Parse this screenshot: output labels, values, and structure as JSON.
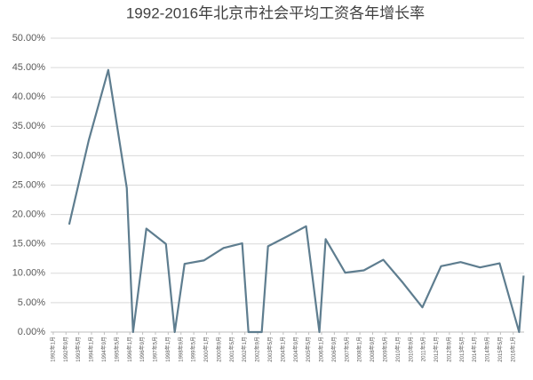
{
  "chart_data": {
    "type": "line",
    "title": "1992-2016年北京市社会平均工资各年增长率",
    "x": [
      1.25,
      2.78,
      4.31,
      5.76,
      6.25,
      7.29,
      8.82,
      9.51,
      10.28,
      11.81,
      13.33,
      14.79,
      15.28,
      16.32,
      16.81,
      18.33,
      19.79,
      20.83,
      21.32,
      22.85,
      24.31,
      25.83,
      27.36,
      28.89,
      30.35,
      31.88,
      33.4,
      34.93,
      36.46,
      36.81
    ],
    "series": [
      {
        "name": "增长率",
        "color": "#5e7d8f",
        "values": [
          18.3,
          32.6,
          44.6,
          24.5,
          0,
          17.6,
          15.0,
          0,
          11.6,
          12.2,
          14.3,
          15.1,
          0,
          0,
          14.6,
          16.3,
          18.0,
          0,
          15.8,
          10.1,
          10.5,
          12.3,
          8.4,
          4.2,
          11.2,
          11.9,
          11.0,
          11.7,
          0,
          9.6
        ]
      }
    ],
    "xlim": [
      -0.2,
      36.85
    ],
    "xticks": [
      {
        "value": 0,
        "label": "1992年1月"
      },
      {
        "value": 1,
        "label": "1992年9月"
      },
      {
        "value": 2,
        "label": "1993年5月"
      },
      {
        "value": 3,
        "label": "1994年1月"
      },
      {
        "value": 4,
        "label": "1994年9月"
      },
      {
        "value": 5,
        "label": "1995年5月"
      },
      {
        "value": 6,
        "label": "1996年1月"
      },
      {
        "value": 7,
        "label": "1996年9月"
      },
      {
        "value": 8,
        "label": "1997年5月"
      },
      {
        "value": 9,
        "label": "1998年1月"
      },
      {
        "value": 10,
        "label": "1998年9月"
      },
      {
        "value": 11,
        "label": "1999年5月"
      },
      {
        "value": 12,
        "label": "2000年1月"
      },
      {
        "value": 13,
        "label": "2000年9月"
      },
      {
        "value": 14,
        "label": "2001年5月"
      },
      {
        "value": 15,
        "label": "2002年1月"
      },
      {
        "value": 16,
        "label": "2002年9月"
      },
      {
        "value": 17,
        "label": "2003年5月"
      },
      {
        "value": 18,
        "label": "2004年1月"
      },
      {
        "value": 19,
        "label": "2004年9月"
      },
      {
        "value": 20,
        "label": "2005年5月"
      },
      {
        "value": 21,
        "label": "2006年1月"
      },
      {
        "value": 22,
        "label": "2006年9月"
      },
      {
        "value": 23,
        "label": "2007年5月"
      },
      {
        "value": 24,
        "label": "2008年1月"
      },
      {
        "value": 25,
        "label": "2008年9月"
      },
      {
        "value": 26,
        "label": "2009年5月"
      },
      {
        "value": 27,
        "label": "2010年1月"
      },
      {
        "value": 28,
        "label": "2010年9月"
      },
      {
        "value": 29,
        "label": "2011年5月"
      },
      {
        "value": 30,
        "label": "2012年1月"
      },
      {
        "value": 31,
        "label": "2012年9月"
      },
      {
        "value": 32,
        "label": "2013年5月"
      },
      {
        "value": 33,
        "label": "2014年1月"
      },
      {
        "value": 34,
        "label": "2014年9月"
      },
      {
        "value": 35,
        "label": "2015年5月"
      },
      {
        "value": 36,
        "label": "2016年1月"
      }
    ],
    "ylim": [
      0,
      50
    ],
    "yticks": [
      {
        "value": 0,
        "label": "0.00%"
      },
      {
        "value": 5,
        "label": "5.00%"
      },
      {
        "value": 10,
        "label": "10.00%"
      },
      {
        "value": 15,
        "label": "15.00%"
      },
      {
        "value": 20,
        "label": "20.00%"
      },
      {
        "value": 25,
        "label": "25.00%"
      },
      {
        "value": 30,
        "label": "30.00%"
      },
      {
        "value": 35,
        "label": "35.00%"
      },
      {
        "value": 40,
        "label": "40.00%"
      },
      {
        "value": 45,
        "label": "45.00%"
      },
      {
        "value": 50,
        "label": "50.00%"
      }
    ],
    "grid": true
  }
}
